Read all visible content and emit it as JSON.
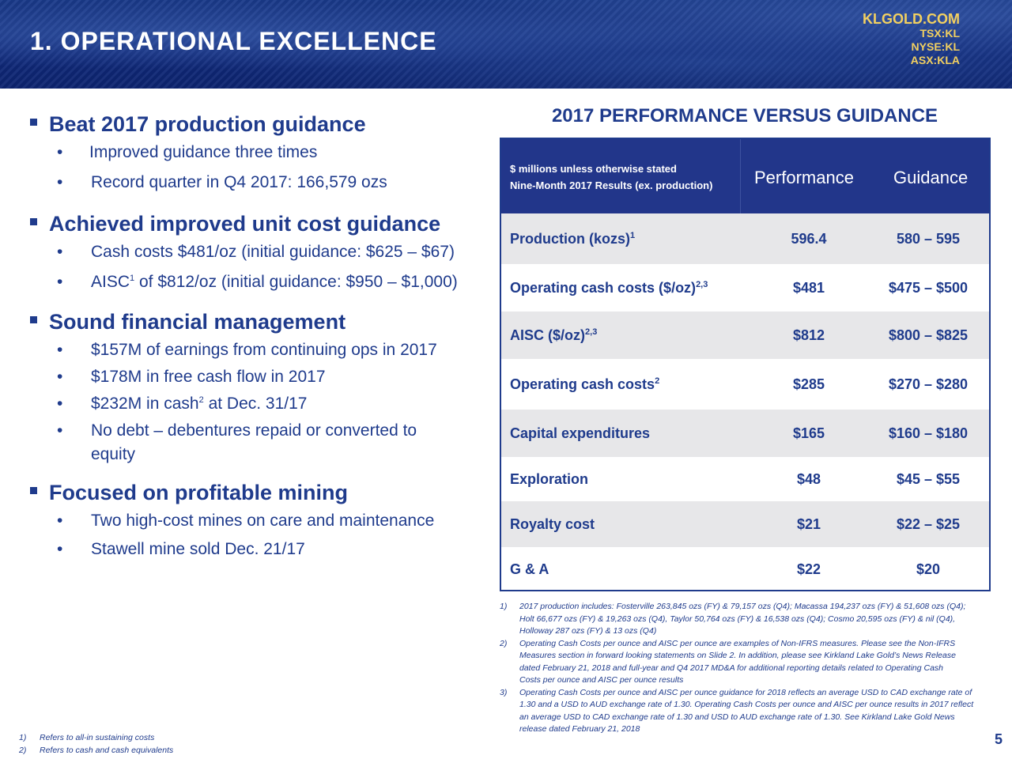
{
  "header": {
    "title": "1. OPERATIONAL EXCELLENCE",
    "site": "KLGOLD.COM",
    "tickers": [
      "TSX:KL",
      "NYSE:KL",
      "ASX:KLA"
    ]
  },
  "left": {
    "sections": [
      {
        "heading": "Beat 2017 production guidance",
        "items": [
          "Improved guidance three times",
          "Record quarter in Q4 2017: 166,579 ozs"
        ]
      },
      {
        "heading": "Achieved improved unit cost guidance",
        "items": [
          "Cash costs $481/oz (initial guidance: $625 – $67)",
          "of $812/oz (initial guidance: $950 – $1,000)"
        ],
        "aisc_prefix": "AISC",
        "aisc_sup": "1"
      },
      {
        "heading": "Sound financial management",
        "items": [
          "$157M of earnings from continuing ops in 2017",
          "$178M in free cash flow in 2017",
          "at Dec. 31/17",
          "No debt – debentures repaid or converted to",
          "equity"
        ],
        "cash_prefix": "$232M in cash",
        "cash_sup": "2"
      },
      {
        "heading": "Focused on profitable mining",
        "items": [
          "Two high-cost mines on care and maintenance",
          "Stawell mine sold Dec. 21/17"
        ]
      }
    ]
  },
  "table": {
    "title": "2017 PERFORMANCE VERSUS GUIDANCE",
    "note_line1": "$ millions unless otherwise stated",
    "note_line2": "Nine-Month 2017 Results (ex. production)",
    "col_performance": "Performance",
    "col_guidance": "Guidance",
    "rows": [
      {
        "label": "Production (kozs)",
        "sup": "1",
        "performance": "596.4",
        "guidance": "580 – 595"
      },
      {
        "label": "Operating cash costs ($/oz)",
        "sup": "2,3",
        "performance": "$481",
        "guidance": "$475 – $500"
      },
      {
        "label": "AISC ($/oz)",
        "sup": "2,3",
        "performance": "$812",
        "guidance": "$800 – $825"
      },
      {
        "label": "Operating cash costs",
        "sup": "2",
        "performance": "$285",
        "guidance": "$270 – $280"
      },
      {
        "label": "Capital expenditures",
        "sup": "",
        "performance": "$165",
        "guidance": "$160 – $180"
      },
      {
        "label": "Exploration",
        "sup": "",
        "performance": "$48",
        "guidance": "$45 – $55"
      },
      {
        "label": "Royalty cost",
        "sup": "",
        "performance": "$21",
        "guidance": "$22 – $25"
      },
      {
        "label": "G & A",
        "sup": "",
        "performance": "$22",
        "guidance": "$20"
      }
    ]
  },
  "table_footnotes": [
    {
      "num": "1)",
      "lines": [
        "2017 production includes: Fosterville 263,845 ozs (FY) & 79,157 ozs (Q4); Macassa 194,237 ozs (FY) & 51,608 ozs (Q4);",
        "Holt 66,677 ozs (FY) & 19,263 ozs (Q4), Taylor 50,764 ozs (FY) & 16,538 ozs (Q4); Cosmo 20,595 ozs (FY) & nil (Q4),",
        "Holloway 287 ozs (FY) & 13 ozs (Q4)"
      ]
    },
    {
      "num": "2)",
      "lines": [
        "Operating Cash Costs per ounce and AISC per ounce are examples of Non-IFRS measures. Please see the Non-IFRS",
        "Measures section in forward looking statements on Slide 2. In addition, please see Kirkland Lake Gold’s News Release",
        "dated  February 21, 2018 and full-year and Q4 2017 MD&A for additional reporting details related to Operating Cash",
        "Costs per ounce and AISC per ounce results"
      ]
    },
    {
      "num": "3)",
      "lines": [
        "Operating Cash Costs per ounce and AISC per ounce guidance for 2018 reflects an average USD to CAD exchange rate of",
        "1.30 and a USD to AUD exchange rate of 1.30. Operating Cash Costs per ounce and AISC per ounce results in 2017 reflect",
        "an average USD to CAD exchange rate of 1.30 and USD to AUD exchange rate of 1.30. See Kirkland Lake Gold News",
        "release dated February 21, 2018"
      ]
    }
  ],
  "bottom_footnotes": [
    {
      "num": "1)",
      "text": "Refers to all-in sustaining costs"
    },
    {
      "num": "2)",
      "text": "Refers to cash and cash equivalents"
    }
  ],
  "page_number": "5"
}
